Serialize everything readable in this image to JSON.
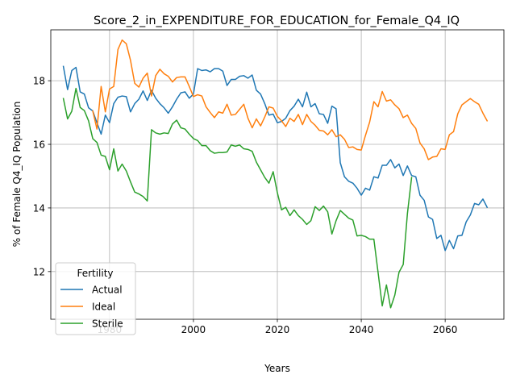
{
  "chart_data": {
    "type": "line",
    "title": "Score_2_in_EXPENDITURE_FOR_EDUCATION_for_Female_Q4_IQ",
    "xlabel": "Years",
    "ylabel": "% of Female Q4_IQ Population",
    "xlim": [
      1966,
      2074
    ],
    "ylim": [
      10.5,
      19.6
    ],
    "xticks": [
      1980,
      2000,
      2020,
      2040,
      2060
    ],
    "yticks": [
      12,
      14,
      16,
      18
    ],
    "grid": true,
    "legend": {
      "title": "Fertility",
      "placement": "lower-left"
    },
    "x_start": 1969,
    "x_step": 1,
    "series": [
      {
        "name": "Actual",
        "color": "#1f77b4",
        "values": [
          18.45,
          17.72,
          18.32,
          18.42,
          17.65,
          17.58,
          17.15,
          17.05,
          16.68,
          16.32,
          16.92,
          16.68,
          17.28,
          17.48,
          17.52,
          17.5,
          17.02,
          17.28,
          17.42,
          17.68,
          17.38,
          17.7,
          17.45,
          17.28,
          17.15,
          16.98,
          17.18,
          17.42,
          17.62,
          17.65,
          17.45,
          17.58,
          18.38,
          18.32,
          18.34,
          18.28,
          18.38,
          18.38,
          18.3,
          17.85,
          18.04,
          18.04,
          18.14,
          18.16,
          18.08,
          18.18,
          17.7,
          17.58,
          17.28,
          16.92,
          16.95,
          16.68,
          16.72,
          16.82,
          17.06,
          17.2,
          17.42,
          17.18,
          17.64,
          17.18,
          17.28,
          16.96,
          16.94,
          16.66,
          17.2,
          17.12,
          15.42,
          14.98,
          14.84,
          14.78,
          14.62,
          14.4,
          14.62,
          14.56,
          14.98,
          14.94,
          15.34,
          15.34,
          15.52,
          15.26,
          15.38,
          15.02,
          15.32,
          15.02,
          14.98,
          14.4,
          14.24,
          13.72,
          13.64,
          13.04,
          13.14,
          12.66,
          12.98,
          12.72,
          13.12,
          13.14,
          13.56,
          13.78,
          14.14,
          14.1,
          14.28,
          14.02
        ]
      },
      {
        "name": "Ideal",
        "color": "#ff7f0e",
        "values": [
          null,
          null,
          null,
          null,
          null,
          null,
          null,
          17.05,
          16.48,
          17.82,
          17.02,
          17.74,
          17.82,
          18.98,
          19.28,
          19.16,
          18.64,
          17.92,
          17.8,
          18.08,
          18.24,
          17.52,
          18.16,
          18.36,
          18.22,
          18.14,
          17.96,
          18.1,
          18.12,
          18.12,
          17.82,
          17.5,
          17.56,
          17.52,
          17.18,
          17.0,
          16.84,
          17.02,
          16.98,
          17.26,
          16.92,
          16.94,
          17.1,
          17.26,
          16.82,
          16.52,
          16.8,
          16.58,
          16.86,
          17.18,
          17.14,
          16.88,
          16.74,
          16.56,
          16.82,
          16.72,
          16.94,
          16.62,
          16.94,
          16.72,
          16.6,
          16.44,
          16.42,
          16.3,
          16.46,
          16.24,
          16.3,
          16.16,
          15.9,
          15.92,
          15.84,
          15.82,
          16.28,
          16.7,
          17.34,
          17.18,
          17.66,
          17.36,
          17.4,
          17.24,
          17.12,
          16.84,
          16.92,
          16.66,
          16.5,
          16.04,
          15.86,
          15.52,
          15.6,
          15.62,
          15.86,
          15.84,
          16.3,
          16.4,
          16.96,
          17.24,
          17.34,
          17.44,
          17.34,
          17.26,
          16.98,
          16.74
        ]
      },
      {
        "name": "Sterile",
        "color": "#2ca02c",
        "values": [
          17.44,
          16.8,
          17.04,
          17.76,
          17.16,
          17.06,
          16.74,
          16.18,
          16.06,
          15.66,
          15.62,
          15.2,
          15.86,
          15.16,
          15.38,
          15.16,
          14.82,
          14.5,
          14.44,
          14.36,
          14.22,
          16.46,
          16.36,
          16.32,
          16.36,
          16.34,
          16.64,
          16.76,
          16.52,
          16.48,
          16.32,
          16.18,
          16.12,
          15.96,
          15.96,
          15.8,
          15.72,
          15.74,
          15.74,
          15.76,
          15.98,
          15.94,
          15.98,
          15.86,
          15.84,
          15.78,
          15.44,
          15.2,
          14.96,
          14.78,
          15.14,
          14.48,
          13.94,
          14.02,
          13.76,
          13.94,
          13.76,
          13.64,
          13.48,
          13.6,
          14.04,
          13.92,
          14.06,
          13.88,
          13.18,
          13.6,
          13.92,
          13.8,
          13.68,
          13.62,
          13.12,
          13.14,
          13.1,
          13.02,
          13.02,
          11.98,
          10.92,
          11.58,
          10.86,
          11.26,
          11.98,
          12.22,
          13.82,
          14.96,
          null,
          null,
          null,
          null,
          null,
          null,
          null,
          null,
          null,
          null,
          null,
          null,
          null,
          null,
          null,
          null,
          null,
          null
        ]
      }
    ]
  }
}
